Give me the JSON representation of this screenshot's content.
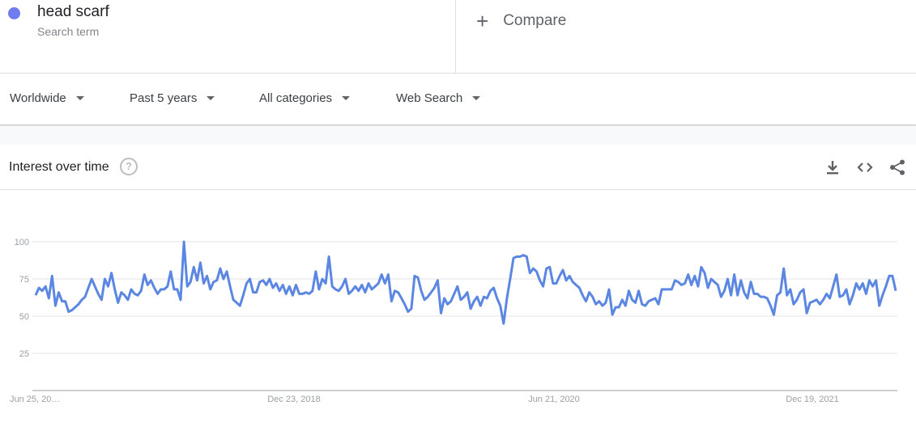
{
  "search": {
    "term": "head scarf",
    "term_sub": "Search term",
    "term_color": "#6f7cf0",
    "compare_label": "Compare",
    "compare_icon": "plus-icon"
  },
  "filters": [
    {
      "label": "Worldwide"
    },
    {
      "label": "Past 5 years"
    },
    {
      "label": "All categories"
    },
    {
      "label": "Web Search"
    }
  ],
  "card": {
    "title": "Interest over time",
    "help_icon": "help-icon",
    "tools": [
      "download-icon",
      "embed-icon",
      "share-icon"
    ]
  },
  "chart_data": {
    "type": "line",
    "title": "Interest over time",
    "xlabel": "",
    "ylabel": "",
    "ylim": [
      0,
      100
    ],
    "yticks": [
      25,
      50,
      75,
      100
    ],
    "grid": true,
    "line_color": "#5b87e2",
    "x_tick_labels": [
      "Jun 25, 20…",
      "Dec 23, 2018",
      "Jun 21, 2020",
      "Dec 19, 2021"
    ],
    "series": [
      {
        "values": [
          64,
          69,
          67,
          70,
          62,
          77,
          57,
          66,
          60,
          60,
          53,
          54,
          56,
          58,
          61,
          63,
          69,
          75,
          70,
          65,
          61,
          75,
          70,
          79,
          68,
          59,
          66,
          64,
          61,
          68,
          65,
          64,
          67,
          78,
          71,
          74,
          69,
          65,
          68,
          68,
          70,
          80,
          68,
          68,
          61,
          100,
          70,
          73,
          83,
          74,
          86,
          72,
          77,
          68,
          73,
          74,
          82,
          75,
          80,
          70,
          61,
          59,
          57,
          64,
          72,
          75,
          66,
          66,
          73,
          74,
          71,
          75,
          69,
          72,
          67,
          71,
          65,
          70,
          64,
          71,
          65,
          65,
          66,
          65,
          67,
          80,
          68,
          75,
          72,
          90,
          70,
          68,
          67,
          70,
          75,
          65,
          67,
          70,
          67,
          71,
          66,
          72,
          68,
          70,
          72,
          78,
          72,
          78,
          60,
          67,
          66,
          62,
          58,
          53,
          55,
          77,
          76,
          67,
          61,
          63,
          66,
          69,
          74,
          52,
          62,
          58,
          60,
          65,
          70,
          61,
          63,
          66,
          55,
          60,
          63,
          57,
          63,
          62,
          67,
          69,
          62,
          57,
          45,
          62,
          75,
          89,
          90,
          90,
          91,
          90,
          79,
          82,
          80,
          74,
          70,
          82,
          83,
          72,
          72,
          77,
          81,
          74,
          77,
          73,
          71,
          69,
          64,
          60,
          66,
          63,
          58,
          60,
          57,
          59,
          68,
          51,
          56,
          56,
          61,
          57,
          67,
          61,
          59,
          67,
          58,
          57,
          60,
          61,
          62,
          58,
          68,
          68,
          68,
          68,
          74,
          73,
          71,
          72,
          78,
          71,
          77,
          70,
          83,
          79,
          69,
          75,
          73,
          71,
          63,
          67,
          75,
          64,
          78,
          64,
          74,
          66,
          62,
          73,
          65,
          65,
          63,
          63,
          62,
          57,
          51,
          64,
          66,
          82,
          64,
          68,
          58,
          61,
          66,
          68,
          52,
          59,
          60,
          61,
          58,
          61,
          65,
          62,
          70,
          78,
          63,
          64,
          68,
          58,
          64,
          72,
          68,
          72,
          65,
          74,
          70,
          74,
          57,
          64,
          70,
          77,
          77,
          67
        ]
      }
    ]
  }
}
